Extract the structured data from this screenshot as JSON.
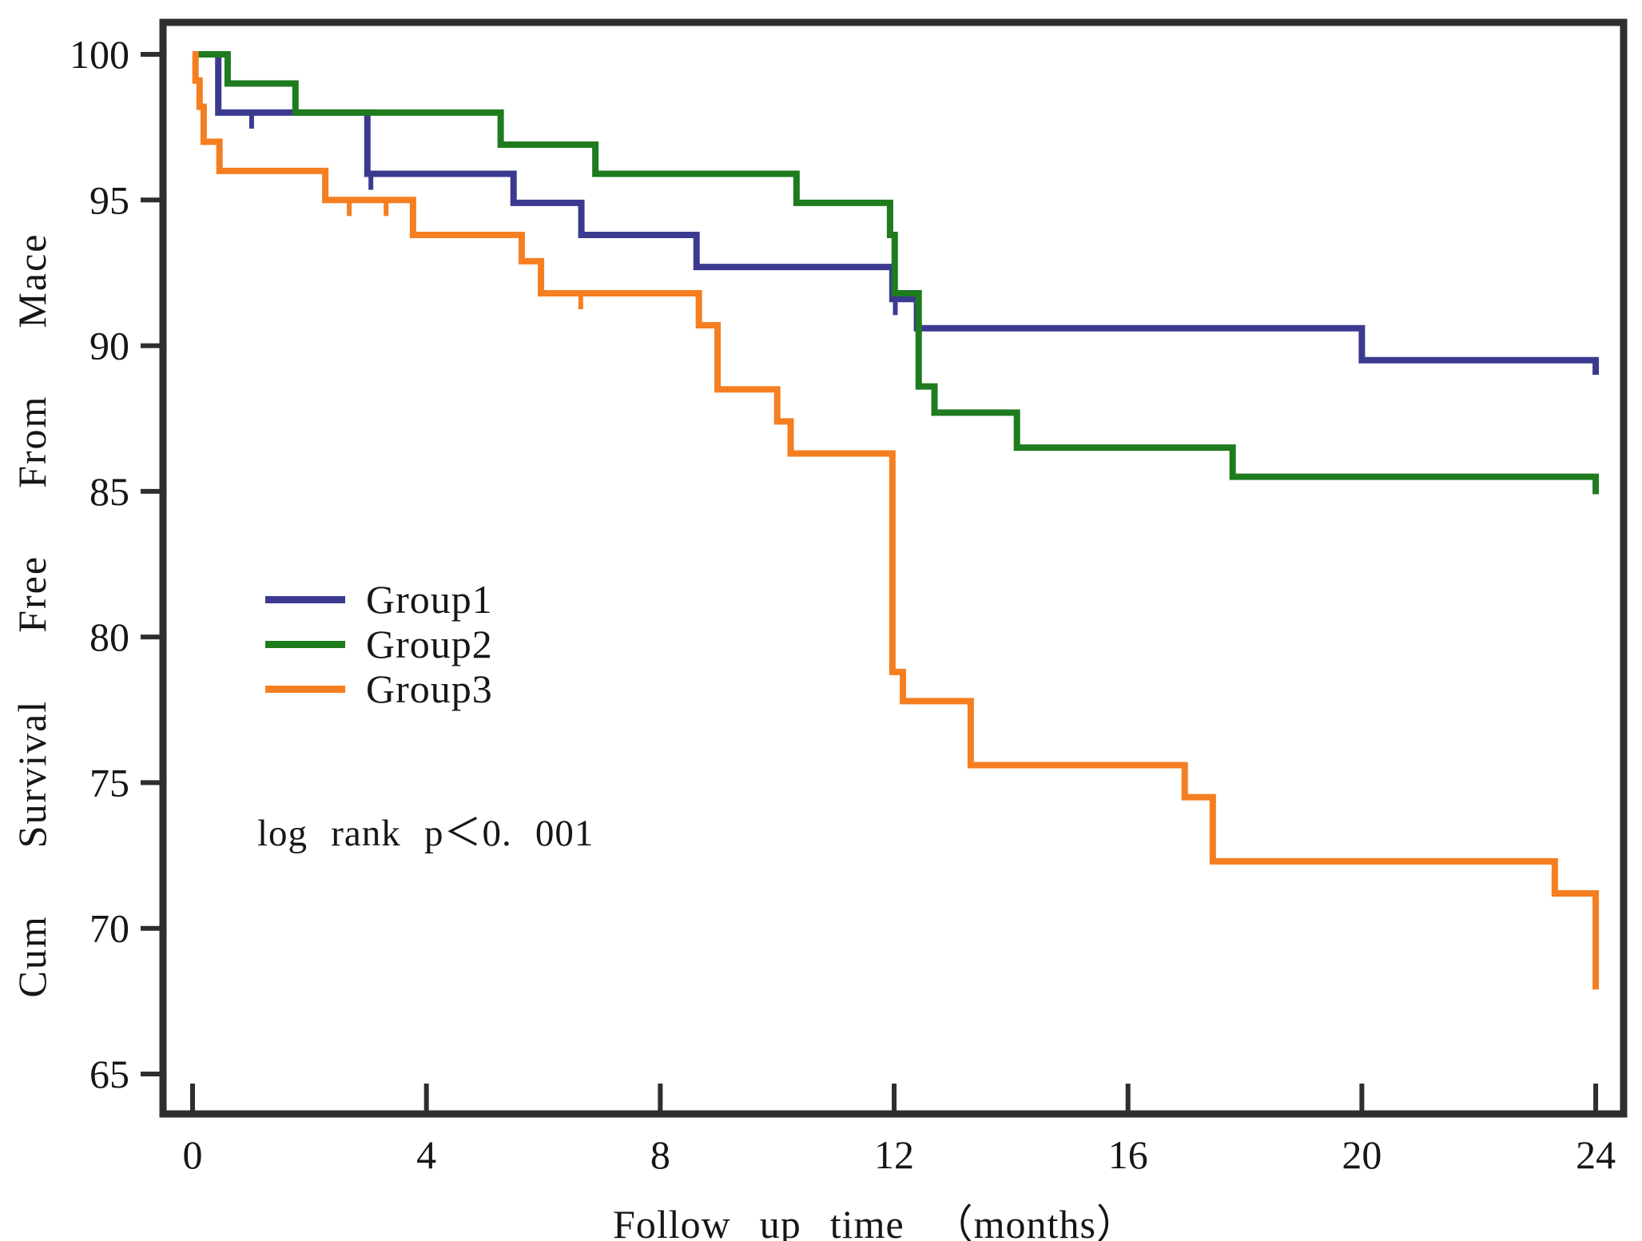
{
  "chart_data": {
    "type": "line",
    "subtype": "kaplan-meier-step",
    "title": "",
    "xlabel": "Follow up time （months）",
    "ylabel": "Cum  Survival  Free  From  Mace",
    "annotation": "log rank p＜0. 001",
    "xlim": [
      -0.5,
      24.5
    ],
    "ylim": [
      63.5,
      101.2
    ],
    "xticks": [
      0,
      4,
      8,
      12,
      16,
      20,
      24
    ],
    "yticks": [
      65,
      70,
      75,
      80,
      85,
      90,
      95,
      100
    ],
    "grid": false,
    "legend_position": "center-left",
    "axis_color": "#2e2e2e",
    "series": [
      {
        "name": "Group1",
        "color": "#3b3a90",
        "steps": [
          [
            0,
            100
          ],
          [
            0.44,
            98.0
          ],
          [
            2.99,
            95.9
          ],
          [
            5.49,
            94.9
          ],
          [
            6.65,
            93.8
          ],
          [
            8.62,
            92.7
          ],
          [
            11.97,
            91.6
          ],
          [
            12.39,
            90.6
          ],
          [
            20.0,
            89.5
          ],
          [
            24.0,
            89.0
          ]
        ],
        "end_time": 24.0,
        "censor_marks": [
          [
            1.01,
            98.0
          ],
          [
            3.05,
            95.9
          ],
          [
            12.02,
            91.6
          ]
        ]
      },
      {
        "name": "Group2",
        "color": "#1e7b1e",
        "steps": [
          [
            0,
            100
          ],
          [
            0.6,
            99.0
          ],
          [
            1.76,
            98.0
          ],
          [
            5.27,
            96.9
          ],
          [
            6.89,
            95.9
          ],
          [
            10.33,
            94.9
          ],
          [
            11.93,
            93.8
          ],
          [
            12.01,
            91.8
          ],
          [
            12.42,
            88.6
          ],
          [
            12.69,
            87.7
          ],
          [
            14.1,
            86.5
          ],
          [
            17.79,
            85.5
          ],
          [
            24.0,
            84.9
          ]
        ],
        "end_time": 24.0,
        "censor_marks": []
      },
      {
        "name": "Group3",
        "color": "#f57e20",
        "steps": [
          [
            0,
            100
          ],
          [
            0.05,
            99.1
          ],
          [
            0.12,
            98.2
          ],
          [
            0.19,
            97.0
          ],
          [
            0.46,
            96.0
          ],
          [
            2.27,
            95.0
          ],
          [
            3.77,
            93.8
          ],
          [
            5.63,
            92.9
          ],
          [
            5.96,
            91.8
          ],
          [
            8.66,
            90.7
          ],
          [
            8.98,
            88.5
          ],
          [
            10.0,
            87.4
          ],
          [
            10.23,
            86.3
          ],
          [
            11.97,
            78.8
          ],
          [
            12.15,
            77.8
          ],
          [
            13.31,
            75.6
          ],
          [
            16.97,
            74.5
          ],
          [
            17.45,
            72.3
          ],
          [
            23.3,
            71.2
          ],
          [
            24.0,
            67.9
          ]
        ],
        "end_time": 24.0,
        "censor_marks": [
          [
            2.68,
            95.0
          ],
          [
            3.31,
            95.0
          ],
          [
            6.64,
            91.8
          ]
        ]
      }
    ]
  }
}
